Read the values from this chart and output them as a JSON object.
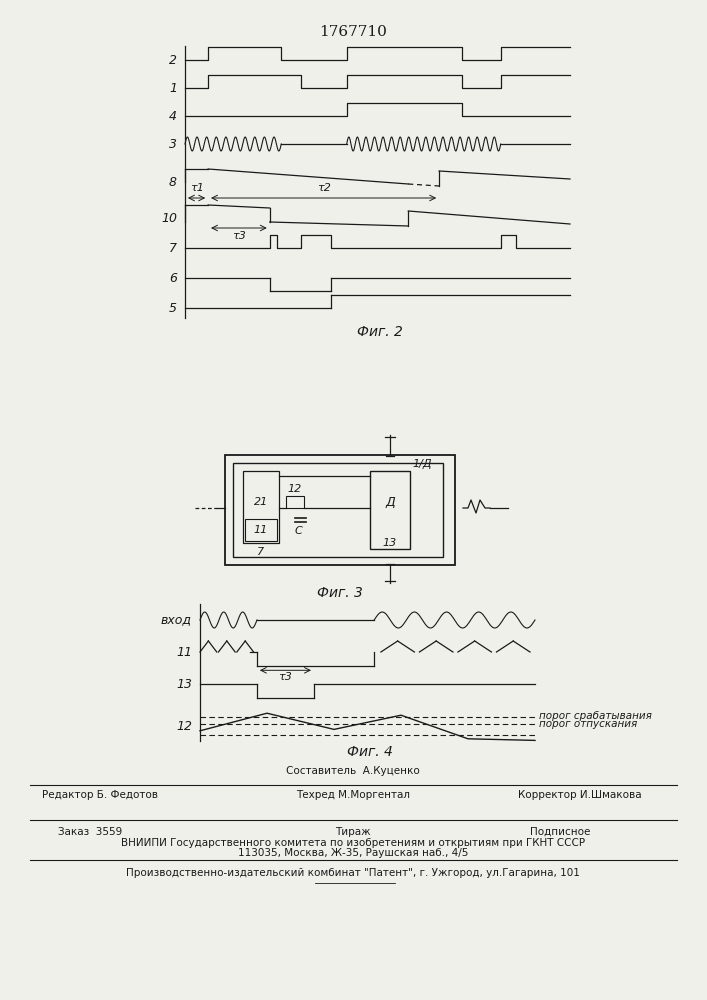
{
  "title": "1767710",
  "fig2_label": "Фиг. 2",
  "fig3_label": "Фиг. 3",
  "fig4_label": "Фиг. 4",
  "footer_line1_left": "Редактор Б. Федотов",
  "footer_line1_mid_top": "Составитель  А.Куценко",
  "footer_line1_mid_bot": "Техред М.Моргентал",
  "footer_line1_right": "Корректор И.Шмакова",
  "footer_line2_1": "Заказ  3559",
  "footer_line2_2": "Тираж",
  "footer_line2_3": "Подписное",
  "footer_line3": "ВНИИПИ Государственного комитета по изобретениям и открытиям при ГКНТ СССР",
  "footer_line4": "113035, Москва, Ж-35, Раушская наб., 4/5",
  "footer_line5": "Производственно-издательский комбинат \"Патент\", г. Ужгород, ул.Гагарина, 101",
  "bg_color": "#f0f0eb",
  "line_color": "#1a1a1a",
  "fig2_row_labels": [
    "2",
    "1",
    "4",
    "3",
    "8",
    "10",
    "7",
    "6",
    "5"
  ],
  "tau1_label": "τ1",
  "tau2_label": "τ2",
  "tau3_label": "τ3",
  "threshold_high": "порог срабатывания",
  "threshold_low": "порог отпускания",
  "fig4_row_labels": [
    "вход",
    "11",
    "13",
    "12"
  ]
}
